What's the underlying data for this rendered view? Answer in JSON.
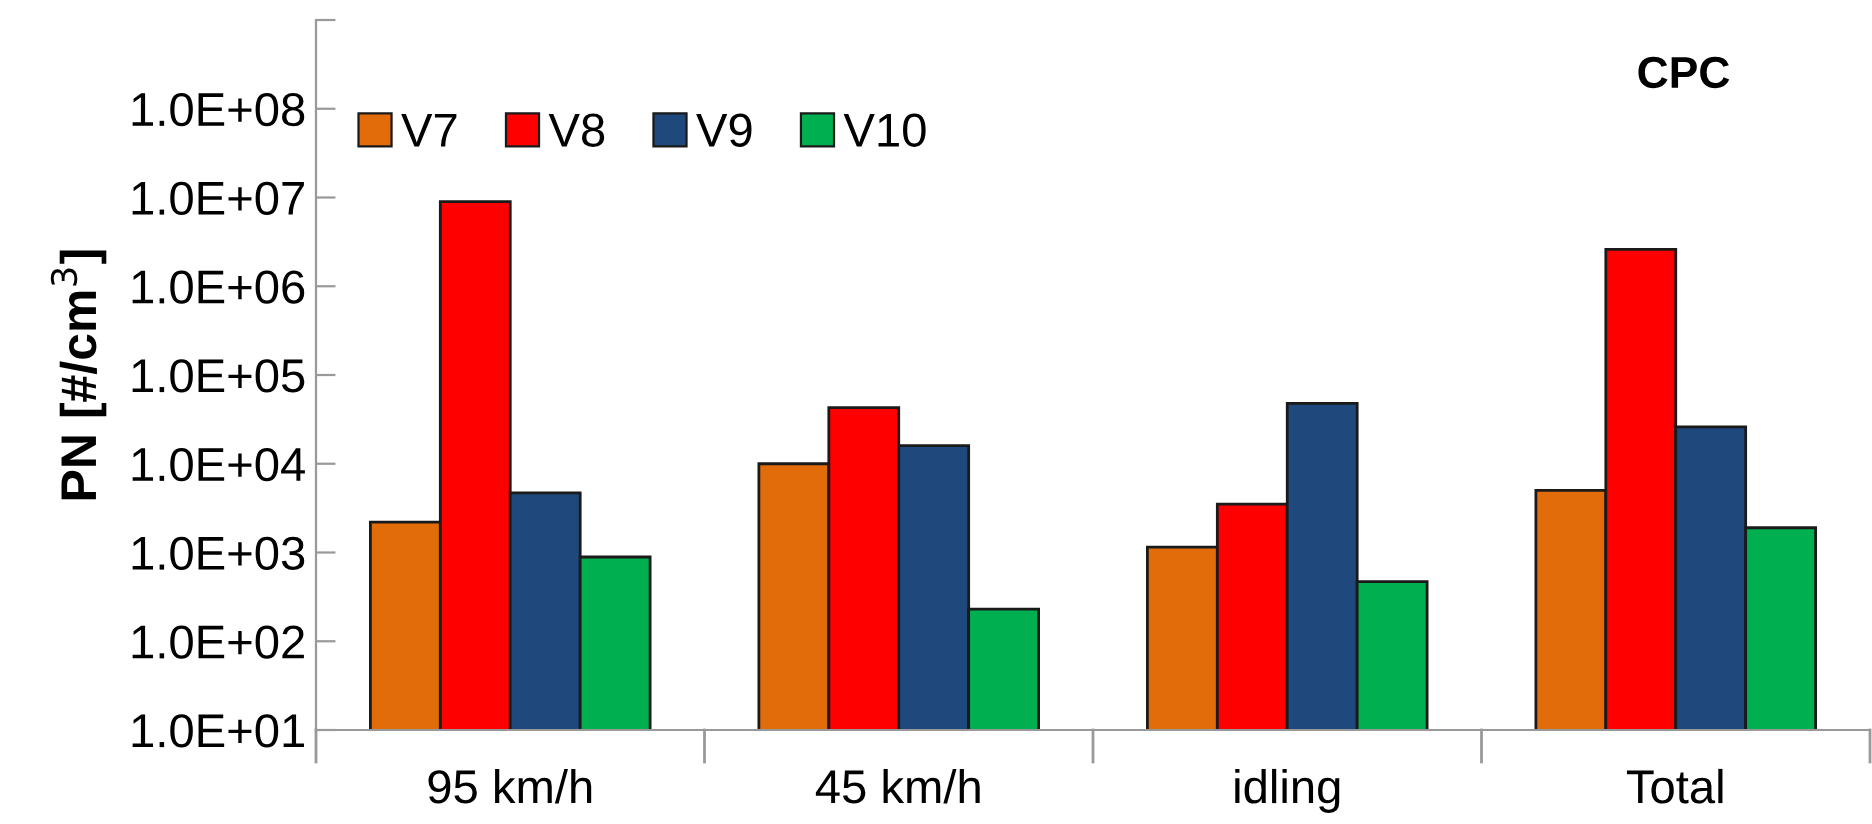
{
  "chart_data": {
    "type": "bar",
    "ylabel": "PN [#/cm$^{3}$]",
    "annotations": [
      "CPC"
    ],
    "categories": [
      "95 km/h",
      "45 km/h",
      "idling",
      "Total"
    ],
    "series": [
      {
        "name": "V7",
        "color": "#e36c0a",
        "values": [
          2200,
          10000,
          1150,
          5000
        ]
      },
      {
        "name": "V8",
        "color": "#ff0000",
        "values": [
          9000000,
          43000,
          3500,
          2600000
        ]
      },
      {
        "name": "V9",
        "color": "#1f497d",
        "values": [
          4700,
          16000,
          48000,
          26000
        ]
      },
      {
        "name": "V10",
        "color": "#00b050",
        "values": [
          890,
          230,
          470,
          1900
        ]
      }
    ],
    "log": "y",
    "ylim": [
      10,
      1000000000
    ],
    "yticks": [
      {
        "value": 10,
        "label": "1.0E+01"
      },
      {
        "value": 100,
        "label": "1.0E+02"
      },
      {
        "value": 1000,
        "label": "1.0E+03"
      },
      {
        "value": 10000,
        "label": "1.0E+04"
      },
      {
        "value": 100000,
        "label": "1.0E+05"
      },
      {
        "value": 1000000,
        "label": "1.0E+06"
      },
      {
        "value": 10000000,
        "label": "1.0E+07"
      },
      {
        "value": 100000000,
        "label": "1.0E+08"
      },
      {
        "value": 1000000000,
        "label": null
      }
    ],
    "grid": false,
    "legend": "top left"
  }
}
